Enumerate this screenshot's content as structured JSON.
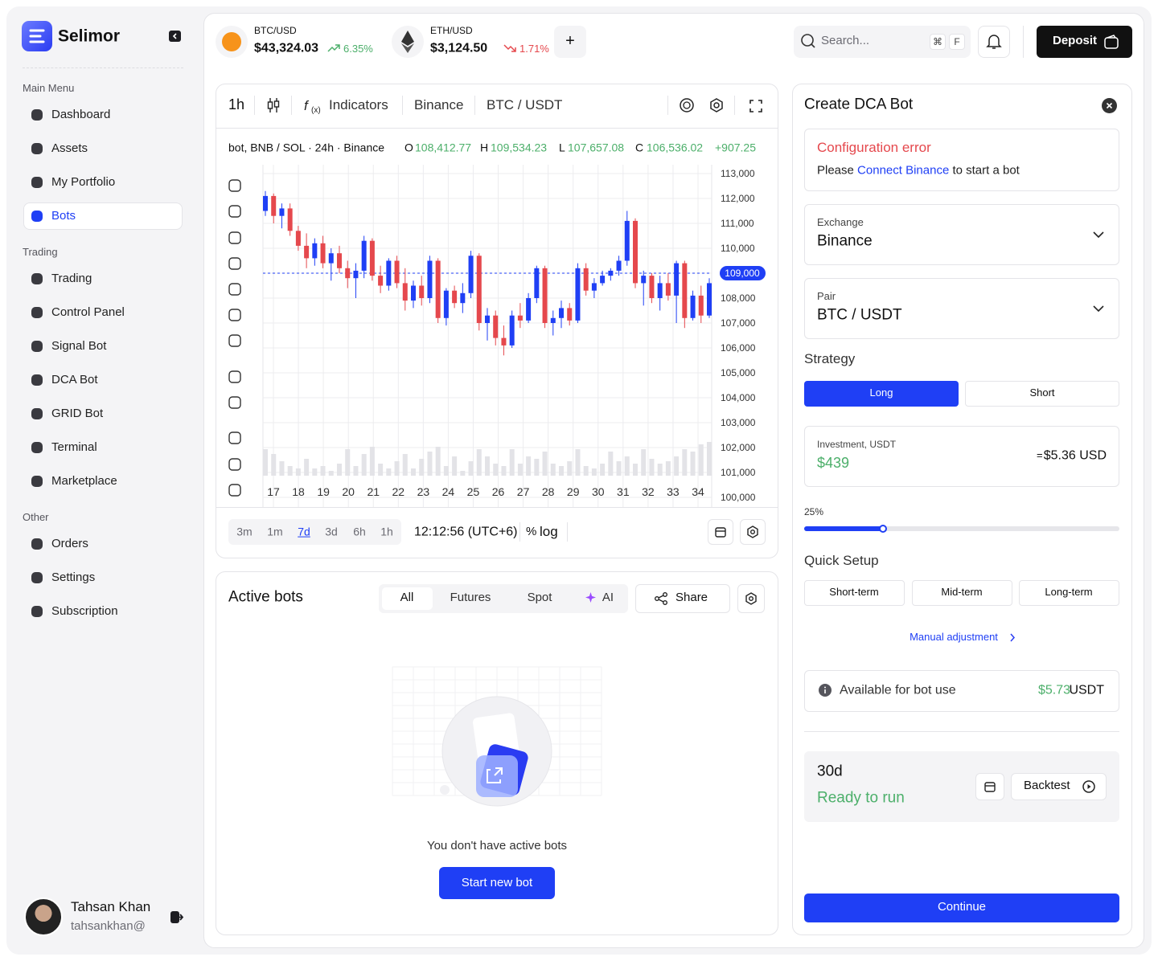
{
  "sidebar": {
    "brand": "Selimor",
    "sections": [
      {
        "title": "Main Menu",
        "items": [
          {
            "label": "Dashboard"
          },
          {
            "label": "Assets"
          },
          {
            "label": "My Portfolio"
          },
          {
            "label": "Bots",
            "active": true
          }
        ]
      },
      {
        "title": "Trading",
        "items": [
          {
            "label": "Trading"
          },
          {
            "label": "Control Panel"
          },
          {
            "label": "Signal Bot"
          },
          {
            "label": "DCA Bot"
          },
          {
            "label": "GRID Bot"
          },
          {
            "label": "Terminal"
          },
          {
            "label": "Marketplace"
          }
        ]
      },
      {
        "title": "Other",
        "items": [
          {
            "label": "Orders"
          },
          {
            "label": "Settings"
          },
          {
            "label": "Subscription"
          }
        ]
      }
    ],
    "user": {
      "name": "Tahsan Khan",
      "handle": "tahsankhan@"
    }
  },
  "topbar": {
    "tickers": [
      {
        "pair": "BTC/USD",
        "price": "$43,324.03",
        "change": "6.35%",
        "trend": "up"
      },
      {
        "pair": "ETH/USD",
        "price": "$3,124.50",
        "change": "1.71%",
        "trend": "down"
      }
    ],
    "add": "+",
    "search": "Search...",
    "keys": [
      "⌘",
      "F"
    ],
    "deposit": "Deposit"
  },
  "chart_panel": {
    "interval": "1h",
    "indicators": "Indicators",
    "exchange": "Binance",
    "pair": "BTC / USDT",
    "legend": "bot, BNB / SOL · 24h · Binance",
    "ohlc": [
      {
        "label": "O",
        "value": "108,412.77"
      },
      {
        "label": "H",
        "value": "109,534.23"
      },
      {
        "label": "L",
        "value": "107,657.08"
      },
      {
        "label": "C",
        "value": "106,536.02"
      }
    ],
    "change": "+907.25",
    "ranges": [
      "3m",
      "1m",
      "7d",
      "3d",
      "6h",
      "1h"
    ],
    "active_range": 2,
    "time": "12:12:56 (UTC+6)",
    "percent": "%",
    "log": "log"
  },
  "chart_data": {
    "type": "candlestick",
    "up_color": "#1f3ff5",
    "down_color": "#e5484d",
    "volume_color": "#e3e3e7",
    "grid": true,
    "ylim": [
      100000,
      113000
    ],
    "yticks": [
      {
        "value": 100000,
        "label": "100,000"
      },
      {
        "value": 101000,
        "label": "101,000"
      },
      {
        "value": 102000,
        "label": "102,000"
      },
      {
        "value": 103000,
        "label": "103,000"
      },
      {
        "value": 104000,
        "label": "104,000"
      },
      {
        "value": 105000,
        "label": "105,000"
      },
      {
        "value": 106000,
        "label": "106,000"
      },
      {
        "value": 107000,
        "label": "107,000"
      },
      {
        "value": 108000,
        "label": "108,000"
      },
      {
        "value": 109000,
        "label": "109,000"
      },
      {
        "value": 110000,
        "label": "110,000"
      },
      {
        "value": 111000,
        "label": "111,000"
      },
      {
        "value": 112000,
        "label": "112,000"
      },
      {
        "value": 113000,
        "label": "113,000"
      }
    ],
    "xlim": [
      17,
      34
    ],
    "xticks": [
      17,
      18,
      19,
      20,
      21,
      22,
      23,
      24,
      25,
      26,
      27,
      28,
      29,
      30,
      31,
      32,
      33,
      34
    ],
    "price_line": {
      "value": 109000,
      "label": "109,000"
    },
    "candles": [
      [
        111500,
        112300,
        111300,
        112100
      ],
      [
        112100,
        112200,
        111000,
        111300
      ],
      [
        111300,
        111800,
        110800,
        111600
      ],
      [
        111600,
        111800,
        110500,
        110700
      ],
      [
        110700,
        110900,
        109900,
        110100
      ],
      [
        110100,
        110600,
        109200,
        109600
      ],
      [
        109600,
        110400,
        109300,
        110200
      ],
      [
        110200,
        110500,
        109200,
        109400
      ],
      [
        109400,
        110000,
        108700,
        109800
      ],
      [
        109800,
        110100,
        109000,
        109200
      ],
      [
        109200,
        109500,
        108400,
        108800
      ],
      [
        108800,
        109400,
        108000,
        109100
      ],
      [
        109100,
        110500,
        108800,
        110300
      ],
      [
        110300,
        110400,
        108700,
        108900
      ],
      [
        108900,
        109300,
        108200,
        108500
      ],
      [
        108500,
        109600,
        108300,
        109500
      ],
      [
        109500,
        109700,
        108400,
        108600
      ],
      [
        108600,
        109200,
        107500,
        107900
      ],
      [
        107900,
        108700,
        107600,
        108500
      ],
      [
        108500,
        108900,
        107700,
        108000
      ],
      [
        108000,
        109700,
        107800,
        109500
      ],
      [
        109500,
        109600,
        107000,
        107200
      ],
      [
        107200,
        108400,
        106900,
        108300
      ],
      [
        108300,
        108500,
        107600,
        107800
      ],
      [
        107800,
        108600,
        107400,
        108200
      ],
      [
        108200,
        109900,
        108000,
        109700
      ],
      [
        109700,
        109800,
        106700,
        107000
      ],
      [
        107000,
        107600,
        106300,
        107300
      ],
      [
        107300,
        107500,
        106100,
        106400
      ],
      [
        106400,
        106900,
        105700,
        106100
      ],
      [
        106100,
        107500,
        106000,
        107300
      ],
      [
        107300,
        107800,
        106800,
        107100
      ],
      [
        107100,
        108200,
        107000,
        108000
      ],
      [
        108000,
        109300,
        107800,
        109200
      ],
      [
        109200,
        109300,
        106800,
        107000
      ],
      [
        107000,
        107500,
        106500,
        107200
      ],
      [
        107200,
        107900,
        106800,
        107600
      ],
      [
        107600,
        107800,
        106900,
        107100
      ],
      [
        107100,
        109400,
        107000,
        109200
      ],
      [
        109200,
        109400,
        108100,
        108300
      ],
      [
        108300,
        108800,
        108000,
        108600
      ],
      [
        108600,
        109100,
        108500,
        108900
      ],
      [
        108900,
        109200,
        108700,
        109100
      ],
      [
        109100,
        109700,
        108900,
        109500
      ],
      [
        109500,
        111500,
        109300,
        111100
      ],
      [
        111100,
        111200,
        108400,
        108600
      ],
      [
        108600,
        109100,
        107700,
        108900
      ],
      [
        108900,
        109000,
        107800,
        108000
      ],
      [
        108000,
        108900,
        107500,
        108600
      ],
      [
        108600,
        109000,
        107900,
        108100
      ],
      [
        108100,
        109500,
        107000,
        109400
      ],
      [
        109400,
        109500,
        106800,
        107200
      ],
      [
        107200,
        108300,
        107100,
        108100
      ],
      [
        108100,
        108500,
        107000,
        107300
      ],
      [
        107300,
        108800,
        107200,
        108600
      ]
    ],
    "volumes": [
      55,
      45,
      30,
      20,
      15,
      35,
      15,
      20,
      10,
      25,
      55,
      20,
      45,
      60,
      25,
      15,
      30,
      45,
      15,
      35,
      50,
      60,
      20,
      40,
      10,
      30,
      55,
      40,
      25,
      20,
      55,
      25,
      40,
      35,
      50,
      25,
      20,
      30,
      55,
      20,
      15,
      25,
      50,
      30,
      40,
      25,
      55,
      35,
      25,
      30,
      40,
      55,
      50,
      65,
      70
    ]
  },
  "active_bots": {
    "title": "Active bots",
    "tabs": [
      "All",
      "Futures",
      "Spot",
      "AI"
    ],
    "active_tab": 0,
    "share": "Share",
    "empty": "You don't have active bots",
    "start": "Start new bot"
  },
  "dca": {
    "title": "Create DCA Bot",
    "error_title": "Configuration error",
    "error_parts": [
      "Please ",
      "Connect Binance",
      " to start a bot"
    ],
    "exchange_label": "Exchange",
    "exchange": "Binance",
    "pair_label": "Pair",
    "pair": "BTC / USDT",
    "strategy": "Strategy",
    "strategies": [
      "Long",
      "Short"
    ],
    "selected_strategy": 0,
    "investment_label": "Investment, USDT",
    "investment": "$439",
    "approx_sign": "=",
    "approx": "$5.36 USD",
    "slider": {
      "value": 25,
      "label": "25%"
    },
    "quick_setup": "Quick Setup",
    "presets": [
      "Short-term",
      "Mid-term",
      "Long-term"
    ],
    "manual": "Manual adjustment",
    "available_label": "Available for bot use",
    "available": "$5.73",
    "available_unit": "USDT",
    "period": "30d",
    "status": "Ready to run",
    "backtest": "Backtest",
    "continue": "Continue"
  }
}
